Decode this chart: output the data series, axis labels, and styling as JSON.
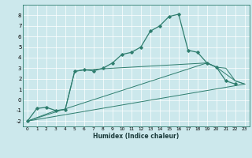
{
  "xlabel": "Humidex (Indice chaleur)",
  "bg_color": "#cce8ec",
  "line_color": "#2e7d6e",
  "xlim": [
    -0.5,
    23.5
  ],
  "ylim": [
    -2.5,
    9.0
  ],
  "yticks": [
    -2,
    -1,
    0,
    1,
    2,
    3,
    4,
    5,
    6,
    7,
    8
  ],
  "xticks": [
    0,
    1,
    2,
    3,
    4,
    5,
    6,
    7,
    8,
    9,
    10,
    11,
    12,
    13,
    14,
    15,
    16,
    17,
    18,
    19,
    20,
    21,
    22,
    23
  ],
  "line1_x": [
    0,
    23
  ],
  "line1_y": [
    -2,
    1.5
  ],
  "line2_x": [
    0,
    19,
    20,
    21,
    22,
    23
  ],
  "line2_y": [
    -2,
    3.5,
    3.1,
    3.0,
    1.8,
    1.5
  ],
  "line3_x": [
    0,
    3,
    4,
    5,
    6,
    19,
    20,
    22,
    23
  ],
  "line3_y": [
    -2,
    -1.0,
    -0.9,
    2.7,
    2.85,
    3.5,
    3.1,
    1.8,
    1.5
  ],
  "curve_x": [
    0,
    1,
    2,
    3,
    4,
    5,
    6,
    7,
    8,
    9,
    10,
    11,
    12,
    13,
    14,
    15,
    16,
    17,
    18,
    19,
    20,
    21,
    22
  ],
  "curve_y": [
    -2,
    -0.8,
    -0.7,
    -1.0,
    -0.9,
    2.7,
    2.85,
    2.75,
    3.0,
    3.5,
    4.3,
    4.5,
    5.0,
    6.5,
    7.0,
    7.9,
    8.1,
    4.7,
    4.5,
    3.5,
    3.1,
    1.8,
    1.5
  ],
  "xlabel_fontsize": 5.5,
  "tick_fontsize_x": 4.2,
  "tick_fontsize_y": 5.0
}
